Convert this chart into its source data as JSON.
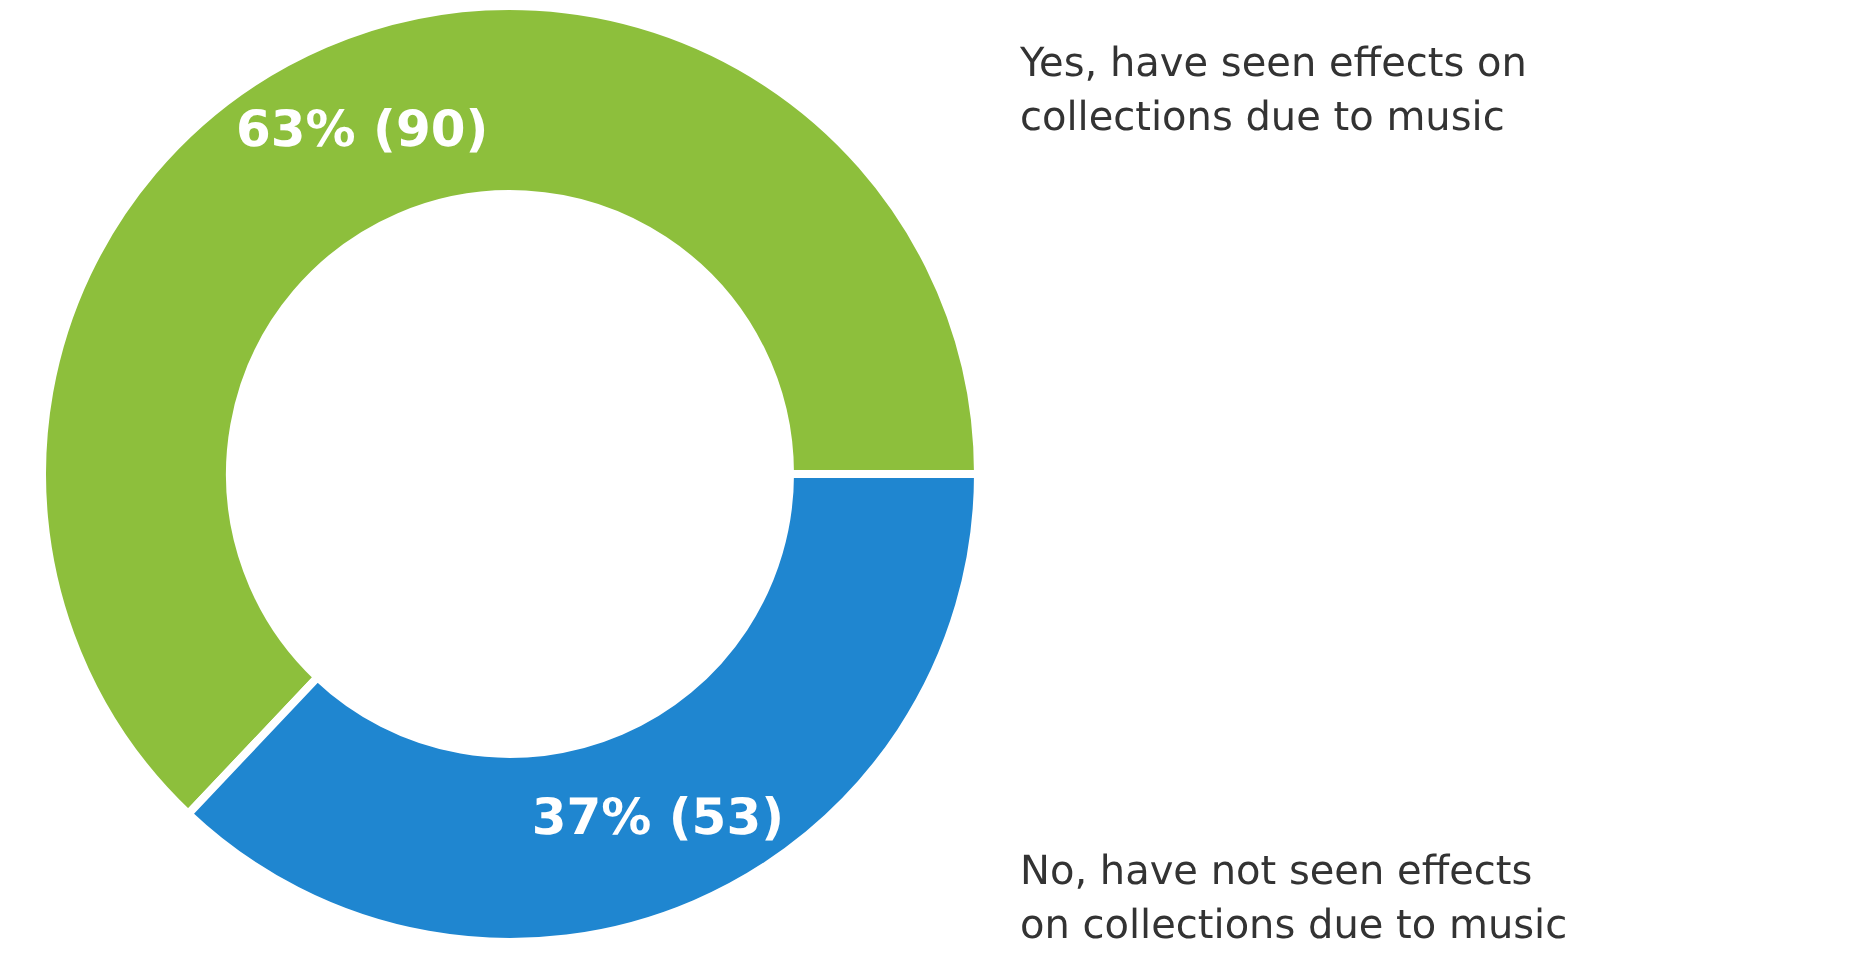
{
  "chart_data": {
    "type": "donut",
    "categories": [
      "Yes, have seen effects on collections due to music",
      "No, have not seen effects on collections due to music"
    ],
    "values": [
      90,
      53
    ],
    "colors": [
      "#8dbf3c",
      "#1f86d0"
    ],
    "value_labels": [
      "63% (90)",
      "37% (53)"
    ]
  }
}
